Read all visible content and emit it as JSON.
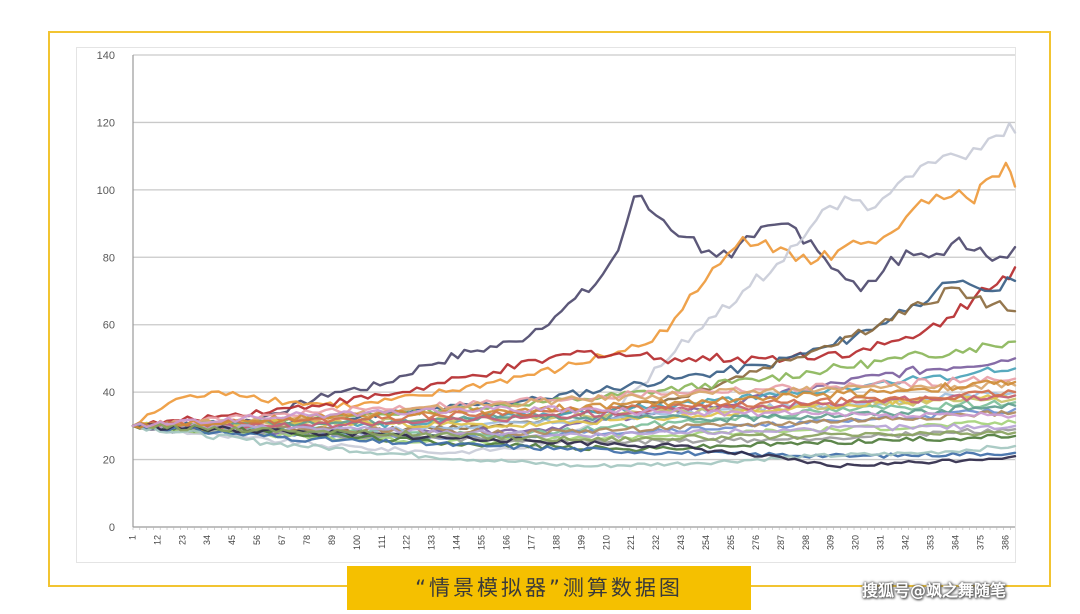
{
  "caption": "“情景模拟器”测算数据图",
  "watermark": "搜狐号@飒之舞随笔",
  "colors": {
    "frame": "#f2c431",
    "caption_bg": "#f5c000",
    "gridline": "#c9c9c9",
    "axis": "#9a9a9a",
    "series_palette": [
      "#4e4a6e",
      "#ee9a3c",
      "#c9ccd8",
      "#b52b2e",
      "#3a5f87",
      "#8bb65a",
      "#7c5fa0",
      "#4aa3b8",
      "#e8a0a8",
      "#9fbfe0",
      "#c8c26a",
      "#7dbf9a",
      "#d9a66b",
      "#6f8fcf",
      "#b08a5c",
      "#e0c24c",
      "#a5d37b",
      "#5f9e8f",
      "#c65f7a",
      "#8c6b3f",
      "#9c9c9c",
      "#4f7c3c",
      "#d2704c",
      "#6b8e23",
      "#b7a3d6",
      "#3f6ea8",
      "#cf8c38",
      "#a4c7c0",
      "#8aa35f",
      "#cc9ad0"
    ]
  },
  "chart_data": {
    "type": "line",
    "title": "",
    "xlabel": "",
    "ylabel": "",
    "ylim": [
      0,
      140
    ],
    "yticks": [
      0,
      20,
      40,
      60,
      80,
      100,
      120,
      140
    ],
    "x_range": [
      1,
      390
    ],
    "xticks": [
      1,
      12,
      23,
      34,
      45,
      56,
      67,
      78,
      89,
      100,
      111,
      122,
      133,
      144,
      155,
      166,
      177,
      188,
      199,
      210,
      221,
      232,
      243,
      254,
      265,
      276,
      287,
      298,
      309,
      320,
      331,
      342,
      353,
      364,
      375,
      386
    ],
    "grid": true,
    "legend": "none",
    "series": [
      {
        "color": "#4e4a6e",
        "values": [
          [
            1,
            30
          ],
          [
            30,
            28
          ],
          [
            60,
            33
          ],
          [
            90,
            40
          ],
          [
            110,
            42
          ],
          [
            130,
            48
          ],
          [
            150,
            52
          ],
          [
            170,
            55
          ],
          [
            190,
            64
          ],
          [
            205,
            72
          ],
          [
            215,
            82
          ],
          [
            222,
            98
          ],
          [
            235,
            91
          ],
          [
            245,
            86
          ],
          [
            255,
            82
          ],
          [
            265,
            80
          ],
          [
            275,
            86
          ],
          [
            290,
            90
          ],
          [
            300,
            85
          ],
          [
            312,
            76
          ],
          [
            322,
            70
          ],
          [
            332,
            76
          ],
          [
            342,
            82
          ],
          [
            352,
            80
          ],
          [
            362,
            84
          ],
          [
            372,
            82
          ],
          [
            380,
            79
          ],
          [
            390,
            83
          ]
        ]
      },
      {
        "color": "#ee9a3c",
        "values": [
          [
            1,
            30
          ],
          [
            20,
            38
          ],
          [
            45,
            40
          ],
          [
            70,
            37
          ],
          [
            100,
            36
          ],
          [
            130,
            39
          ],
          [
            160,
            43
          ],
          [
            190,
            47
          ],
          [
            215,
            52
          ],
          [
            230,
            55
          ],
          [
            240,
            62
          ],
          [
            250,
            70
          ],
          [
            260,
            78
          ],
          [
            270,
            86
          ],
          [
            280,
            85
          ],
          [
            290,
            82
          ],
          [
            300,
            78
          ],
          [
            312,
            82
          ],
          [
            322,
            84
          ],
          [
            332,
            86
          ],
          [
            342,
            92
          ],
          [
            352,
            96
          ],
          [
            362,
            98
          ],
          [
            372,
            96
          ],
          [
            380,
            104
          ],
          [
            386,
            108
          ],
          [
            390,
            101
          ]
        ]
      },
      {
        "color": "#c9ccd8",
        "values": [
          [
            1,
            30
          ],
          [
            40,
            27
          ],
          [
            90,
            24
          ],
          [
            140,
            22
          ],
          [
            180,
            24
          ],
          [
            210,
            33
          ],
          [
            225,
            42
          ],
          [
            240,
            52
          ],
          [
            255,
            62
          ],
          [
            270,
            70
          ],
          [
            285,
            78
          ],
          [
            297,
            86
          ],
          [
            305,
            94
          ],
          [
            315,
            98
          ],
          [
            325,
            94
          ],
          [
            335,
            99
          ],
          [
            345,
            104
          ],
          [
            355,
            108
          ],
          [
            365,
            110
          ],
          [
            375,
            112
          ],
          [
            385,
            116
          ],
          [
            390,
            117
          ]
        ]
      },
      {
        "color": "#b52b2e",
        "values": [
          [
            1,
            30
          ],
          [
            40,
            33
          ],
          [
            80,
            36
          ],
          [
            120,
            40
          ],
          [
            160,
            46
          ],
          [
            200,
            52
          ],
          [
            240,
            50
          ],
          [
            280,
            50
          ],
          [
            320,
            52
          ],
          [
            345,
            56
          ],
          [
            360,
            62
          ],
          [
            372,
            68
          ],
          [
            382,
            72
          ],
          [
            390,
            77
          ]
        ]
      },
      {
        "color": "#3a5f87",
        "values": [
          [
            1,
            30
          ],
          [
            60,
            31
          ],
          [
            120,
            34
          ],
          [
            180,
            38
          ],
          [
            240,
            44
          ],
          [
            280,
            48
          ],
          [
            310,
            54
          ],
          [
            330,
            60
          ],
          [
            345,
            66
          ],
          [
            355,
            70
          ],
          [
            370,
            72
          ],
          [
            380,
            70
          ],
          [
            390,
            73
          ]
        ]
      },
      {
        "color": "#8c6b3f",
        "values": [
          [
            1,
            30
          ],
          [
            80,
            28
          ],
          [
            160,
            30
          ],
          [
            240,
            38
          ],
          [
            300,
            52
          ],
          [
            330,
            60
          ],
          [
            350,
            66
          ],
          [
            362,
            71
          ],
          [
            372,
            68
          ],
          [
            380,
            66
          ],
          [
            390,
            64
          ]
        ]
      },
      {
        "color": "#8bb65a",
        "values": [
          [
            1,
            30
          ],
          [
            100,
            33
          ],
          [
            200,
            38
          ],
          [
            280,
            44
          ],
          [
            340,
            50
          ],
          [
            370,
            53
          ],
          [
            390,
            55
          ]
        ]
      },
      {
        "color": "#7c5fa0",
        "values": [
          [
            1,
            30
          ],
          [
            90,
            27
          ],
          [
            180,
            29
          ],
          [
            260,
            36
          ],
          [
            330,
            45
          ],
          [
            390,
            50
          ]
        ]
      },
      {
        "color": "#4aa3b8",
        "values": [
          [
            1,
            30
          ],
          [
            100,
            30
          ],
          [
            200,
            34
          ],
          [
            300,
            40
          ],
          [
            390,
            47
          ]
        ]
      },
      {
        "color": "#e8a0a8",
        "values": [
          [
            1,
            30
          ],
          [
            80,
            34
          ],
          [
            160,
            37
          ],
          [
            240,
            40
          ],
          [
            320,
            42
          ],
          [
            390,
            44
          ]
        ]
      },
      {
        "color": "#9fbfe0",
        "values": [
          [
            1,
            30
          ],
          [
            90,
            28
          ],
          [
            180,
            31
          ],
          [
            270,
            35
          ],
          [
            350,
            38
          ],
          [
            390,
            40
          ]
        ]
      },
      {
        "color": "#c8c26a",
        "values": [
          [
            1,
            30
          ],
          [
            100,
            31
          ],
          [
            200,
            33
          ],
          [
            300,
            36
          ],
          [
            390,
            38
          ]
        ]
      },
      {
        "color": "#7dbf9a",
        "values": [
          [
            1,
            30
          ],
          [
            80,
            29
          ],
          [
            160,
            27
          ],
          [
            240,
            31
          ],
          [
            320,
            35
          ],
          [
            390,
            37
          ]
        ]
      },
      {
        "color": "#d9a66b",
        "values": [
          [
            1,
            30
          ],
          [
            70,
            32
          ],
          [
            150,
            36
          ],
          [
            230,
            39
          ],
          [
            310,
            41
          ],
          [
            390,
            42
          ]
        ]
      },
      {
        "color": "#6f8fcf",
        "values": [
          [
            1,
            30
          ],
          [
            60,
            28
          ],
          [
            130,
            26
          ],
          [
            200,
            28
          ],
          [
            280,
            30
          ],
          [
            350,
            33
          ],
          [
            390,
            35
          ]
        ]
      },
      {
        "color": "#b08a5c",
        "values": [
          [
            1,
            30
          ],
          [
            90,
            29
          ],
          [
            180,
            28
          ],
          [
            260,
            30
          ],
          [
            330,
            32
          ],
          [
            390,
            34
          ]
        ]
      },
      {
        "color": "#e0c24c",
        "values": [
          [
            1,
            30
          ],
          [
            80,
            31
          ],
          [
            170,
            30
          ],
          [
            250,
            33
          ],
          [
            330,
            37
          ],
          [
            390,
            39
          ]
        ]
      },
      {
        "color": "#a5d37b",
        "values": [
          [
            1,
            30
          ],
          [
            70,
            27
          ],
          [
            150,
            25
          ],
          [
            230,
            27
          ],
          [
            310,
            29
          ],
          [
            390,
            31
          ]
        ]
      },
      {
        "color": "#5f9e8f",
        "values": [
          [
            1,
            30
          ],
          [
            90,
            31
          ],
          [
            180,
            33
          ],
          [
            260,
            32
          ],
          [
            340,
            34
          ],
          [
            390,
            36
          ]
        ]
      },
      {
        "color": "#c65f7a",
        "values": [
          [
            1,
            30
          ],
          [
            80,
            30
          ],
          [
            160,
            32
          ],
          [
            240,
            35
          ],
          [
            320,
            37
          ],
          [
            390,
            39
          ]
        ]
      },
      {
        "color": "#9c9c9c",
        "values": [
          [
            1,
            30
          ],
          [
            100,
            27
          ],
          [
            200,
            25
          ],
          [
            290,
            26
          ],
          [
            360,
            28
          ],
          [
            390,
            29
          ]
        ]
      },
      {
        "color": "#4f7c3c",
        "values": [
          [
            1,
            30
          ],
          [
            70,
            28
          ],
          [
            140,
            25
          ],
          [
            220,
            23
          ],
          [
            300,
            25
          ],
          [
            390,
            27
          ]
        ]
      },
      {
        "color": "#d2704c",
        "values": [
          [
            1,
            30
          ],
          [
            90,
            32
          ],
          [
            170,
            34
          ],
          [
            260,
            36
          ],
          [
            340,
            38
          ],
          [
            390,
            40
          ]
        ]
      },
      {
        "color": "#b7a3d6",
        "values": [
          [
            1,
            30
          ],
          [
            100,
            29
          ],
          [
            200,
            27
          ],
          [
            300,
            29
          ],
          [
            390,
            30
          ]
        ]
      },
      {
        "color": "#3f6ea8",
        "values": [
          [
            1,
            30
          ],
          [
            80,
            26
          ],
          [
            160,
            24
          ],
          [
            240,
            22
          ],
          [
            320,
            21
          ],
          [
            390,
            22
          ]
        ]
      },
      {
        "color": "#a4c7c0",
        "values": [
          [
            1,
            30
          ],
          [
            60,
            25
          ],
          [
            130,
            21
          ],
          [
            200,
            18
          ],
          [
            250,
            19
          ],
          [
            300,
            21
          ],
          [
            350,
            22
          ],
          [
            390,
            24
          ]
        ]
      },
      {
        "color": "#2f2a4a",
        "values": [
          [
            1,
            30
          ],
          [
            80,
            28
          ],
          [
            160,
            26
          ],
          [
            240,
            24
          ],
          [
            290,
            20
          ],
          [
            310,
            18
          ],
          [
            340,
            19
          ],
          [
            370,
            20
          ],
          [
            390,
            21
          ]
        ]
      },
      {
        "color": "#cf8c38",
        "values": [
          [
            1,
            30
          ],
          [
            90,
            33
          ],
          [
            180,
            35
          ],
          [
            270,
            38
          ],
          [
            350,
            41
          ],
          [
            390,
            43
          ]
        ]
      },
      {
        "color": "#8aa35f",
        "values": [
          [
            1,
            30
          ],
          [
            100,
            28
          ],
          [
            200,
            26
          ],
          [
            300,
            27
          ],
          [
            390,
            28
          ]
        ]
      },
      {
        "color": "#cc9ad0",
        "values": [
          [
            1,
            30
          ],
          [
            70,
            33
          ],
          [
            160,
            35
          ],
          [
            250,
            34
          ],
          [
            330,
            33
          ],
          [
            390,
            33
          ]
        ]
      }
    ]
  }
}
